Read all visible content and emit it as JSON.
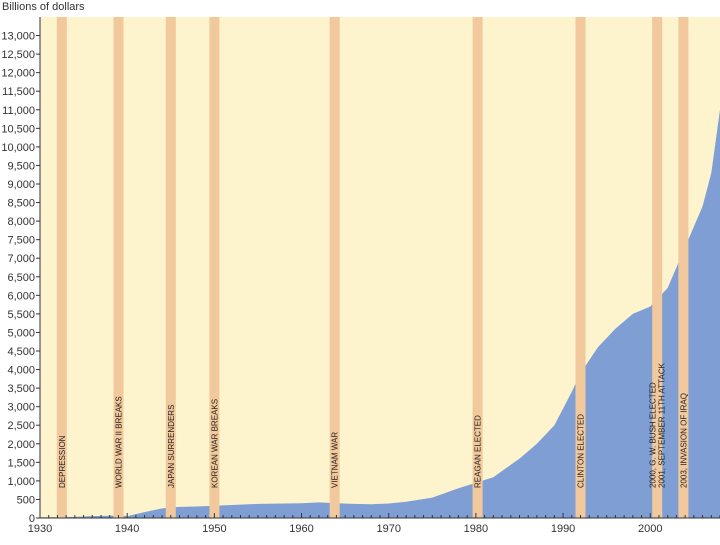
{
  "chart_data": {
    "type": "area",
    "ylabel": "Billions of dollars",
    "xlim": [
      1930,
      2008
    ],
    "ylim": [
      0,
      13500
    ],
    "x_ticks": [
      1930,
      1940,
      1950,
      1960,
      1970,
      1980,
      1990,
      2000
    ],
    "x_tick_labels": [
      "1930",
      "1940",
      "1950",
      "1960",
      "1970",
      "1980",
      "1990",
      "2000"
    ],
    "y_ticks": [
      0,
      500,
      1000,
      1500,
      2000,
      2500,
      3000,
      3500,
      4000,
      4500,
      5000,
      5500,
      6000,
      6500,
      7000,
      7500,
      8000,
      8500,
      9000,
      9500,
      10000,
      10500,
      11000,
      11500,
      12000,
      12500,
      13000
    ],
    "y_tick_labels": [
      "0",
      "500",
      "1,000",
      "1,500",
      "2,000",
      "2,500",
      "3,000",
      "3,500",
      "4,000",
      "4,500",
      "5,000",
      "5,500",
      "6,000",
      "6,500",
      "7,000",
      "7,500",
      "8,000",
      "8,500",
      "9,000",
      "9,500",
      "10,000",
      "10,500",
      "11,000",
      "11,500",
      "12,000",
      "12,500",
      "13,000"
    ],
    "grid": false,
    "colors": {
      "area": "#7f9fd4",
      "background": "#fdf3cc",
      "band": "#f2c99c",
      "axis": "#333333"
    },
    "x": [
      1930,
      1932,
      1934,
      1936,
      1938,
      1939,
      1940,
      1942,
      1944,
      1946,
      1948,
      1950,
      1955,
      1960,
      1962,
      1964,
      1966,
      1968,
      1970,
      1972,
      1975,
      1978,
      1980,
      1982,
      1985,
      1987,
      1989,
      1991,
      1992,
      1994,
      1996,
      1998,
      2000,
      2002,
      2004,
      2006,
      2007,
      2008
    ],
    "values": [
      20,
      20,
      30,
      50,
      60,
      70,
      50,
      160,
      260,
      300,
      310,
      330,
      380,
      400,
      420,
      400,
      380,
      370,
      390,
      440,
      550,
      800,
      950,
      1100,
      1600,
      2000,
      2500,
      3400,
      3900,
      4600,
      5100,
      5500,
      5700,
      6200,
      7300,
      8400,
      9300,
      11000
    ],
    "bands": [
      {
        "x": 1932.5,
        "label": "DEPRESSION"
      },
      {
        "x": 1939.0,
        "label": "WORLD WAR II BREAKS"
      },
      {
        "x": 1945.0,
        "label": "JAPAN SURRENDERS"
      },
      {
        "x": 1950.0,
        "label": "KOREAN WAR BREAKS"
      },
      {
        "x": 1963.8,
        "label": "VIETNAM WAR"
      },
      {
        "x": 1980.2,
        "label": "REAGAN ELECTED"
      },
      {
        "x": 1992.0,
        "label": "CLINTON ELECTED"
      },
      {
        "x": 2000.8,
        "label": "2000, G. W. BUSH ELECTED\n2001, SEPTEMBER 11TH ATTACK"
      },
      {
        "x": 2003.8,
        "label": "2003, INVASION OF IRAQ"
      }
    ]
  }
}
